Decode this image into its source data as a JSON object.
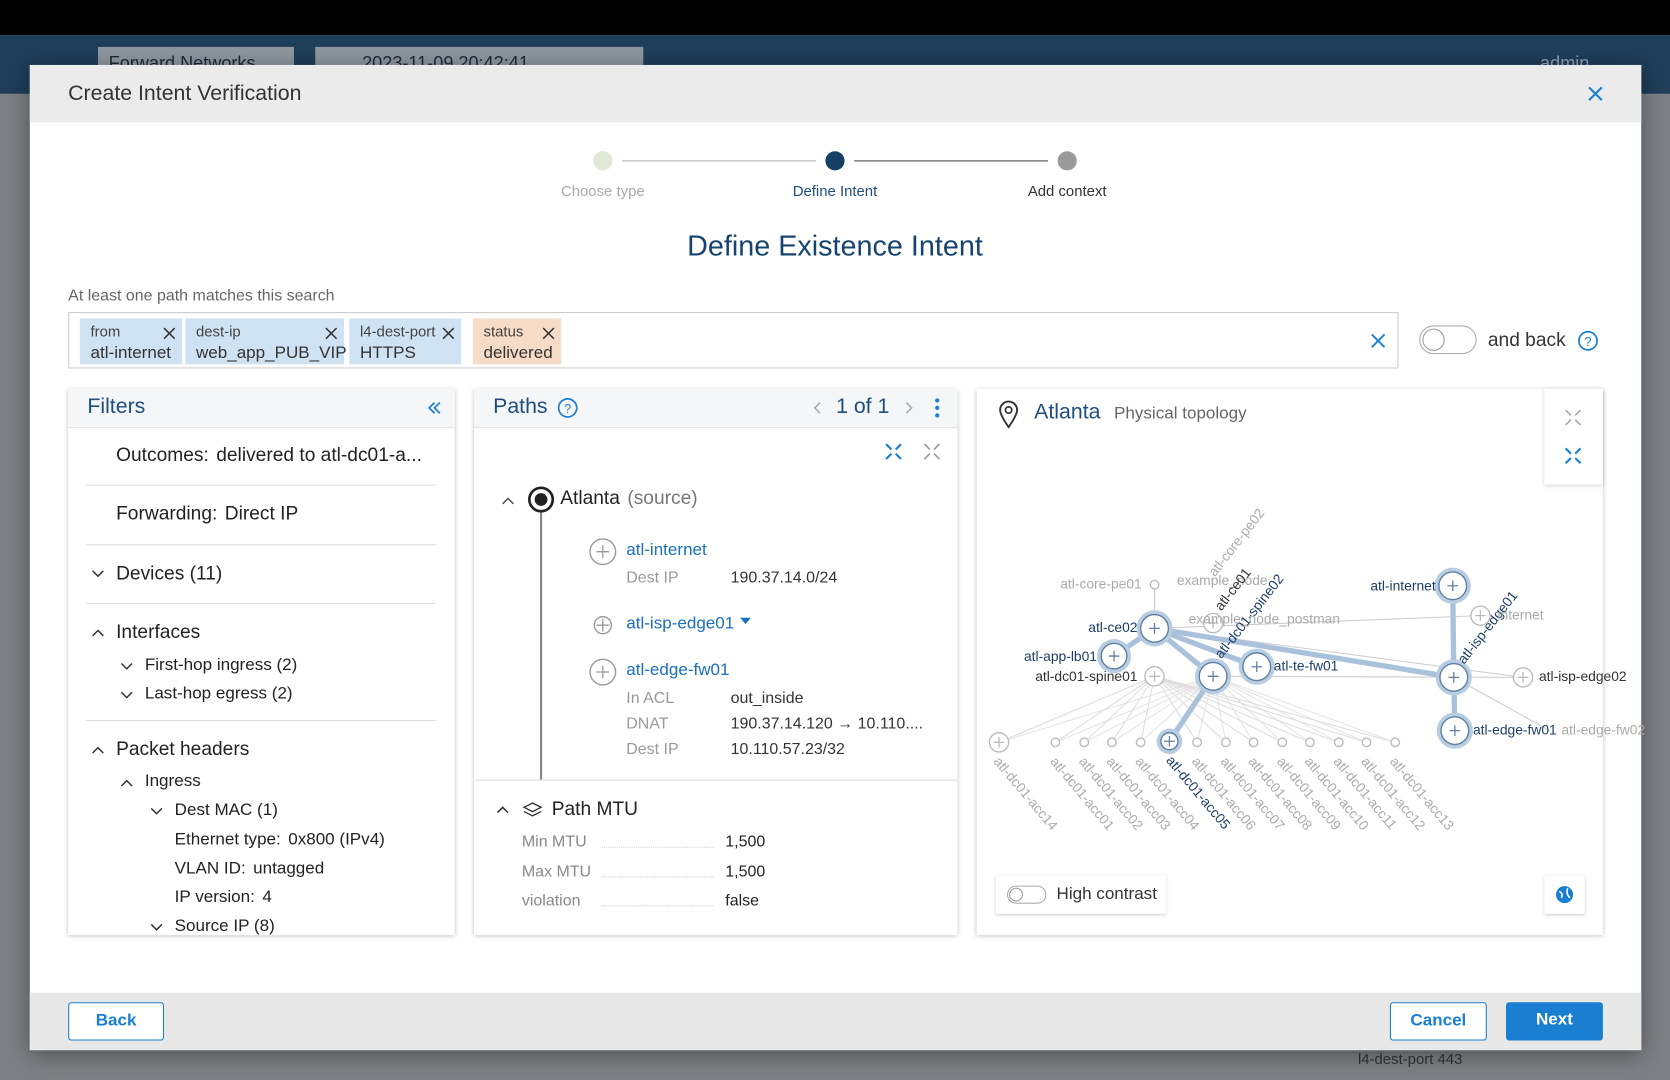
{
  "app": {
    "org": "Forward Networks",
    "snapshot": "2023-11-09  20:42:41",
    "user": "admin",
    "behind": "l4-dest-port  443"
  },
  "dialog": {
    "title": "Create Intent Verification",
    "steps": [
      "Choose type",
      "Define Intent",
      "Add context"
    ],
    "heading": "Define Existence Intent",
    "search_label": "At least one path matches this search",
    "chips": [
      {
        "key": "from",
        "value": "atl-internet"
      },
      {
        "key": "dest-ip",
        "value": "web_app_PUB_VIP"
      },
      {
        "key": "l4-dest-port",
        "value": "HTTPS"
      },
      {
        "key": "status",
        "value": "delivered"
      }
    ],
    "and_back": "and back",
    "buttons": {
      "back": "Back",
      "cancel": "Cancel",
      "next": "Next"
    }
  },
  "filters": {
    "title": "Filters",
    "rows": [
      {
        "label": "Outcomes:",
        "value": "delivered to atl-dc01-a..."
      },
      {
        "label": "Forwarding:",
        "value": "Direct IP"
      },
      {
        "label": "Devices (11)"
      },
      {
        "label": "Interfaces"
      },
      {
        "label": "First-hop ingress (2)"
      },
      {
        "label": "Last-hop egress (2)"
      },
      {
        "label": "Packet headers"
      },
      {
        "label": "Ingress"
      },
      {
        "label": "Dest MAC (1)"
      },
      {
        "label": "Ethernet type:",
        "value": "0x800  (IPv4)"
      },
      {
        "label": "VLAN ID:",
        "value": "untagged"
      },
      {
        "label": "IP version:",
        "value": "4"
      },
      {
        "label": "Source IP (8)"
      }
    ]
  },
  "paths": {
    "title": "Paths",
    "pager": "1 of 1",
    "source": "Atlanta",
    "source_note": "(source)",
    "hops": [
      {
        "name": "atl-internet",
        "rows": [
          {
            "label": "Dest IP",
            "value": "190.37.14.0/24"
          }
        ]
      },
      {
        "name": "atl-isp-edge01",
        "rows": []
      },
      {
        "name": "atl-edge-fw01",
        "rows": [
          {
            "label": "In ACL",
            "value": "out_inside"
          },
          {
            "label": "DNAT",
            "value": "190.37.14.120 → 10.110...."
          },
          {
            "label": "Dest IP",
            "value": "10.110.57.23/32"
          }
        ]
      }
    ],
    "mtu": {
      "title": "Path MTU",
      "rows": [
        {
          "label": "Min MTU",
          "value": "1,500"
        },
        {
          "label": "Max MTU",
          "value": "1,500"
        },
        {
          "label": "violation",
          "value": "false"
        }
      ]
    }
  },
  "topology": {
    "title": "Atlanta",
    "subtitle": "Physical topology",
    "high_contrast": "High contrast",
    "nodes": [
      "atl-internet",
      "atl-ce02",
      "atl-app-lb01",
      "atl-dc01-spine01",
      "atl-dc01-spine02",
      "atl-te-fw01",
      "atl-isp-edge01",
      "atl-edge-fw01",
      "atl-dc01-acc05",
      "atl-core-pe01",
      "atl-core-pe02",
      "example_node",
      "atl-ce01",
      "example_node_postman",
      "internet",
      "atl-isp-edge02",
      "atl-edge-fw02",
      "atl-dc01-acc14",
      "atl-dc01-acc01",
      "atl-dc01-acc02",
      "atl-dc01-acc03",
      "atl-dc01-acc04",
      "atl-dc01-acc06",
      "atl-dc01-acc07",
      "atl-dc01-acc08",
      "atl-dc01-acc09",
      "atl-dc01-acc10",
      "atl-dc01-acc11",
      "atl-dc01-acc12",
      "atl-dc01-acc13"
    ]
  }
}
